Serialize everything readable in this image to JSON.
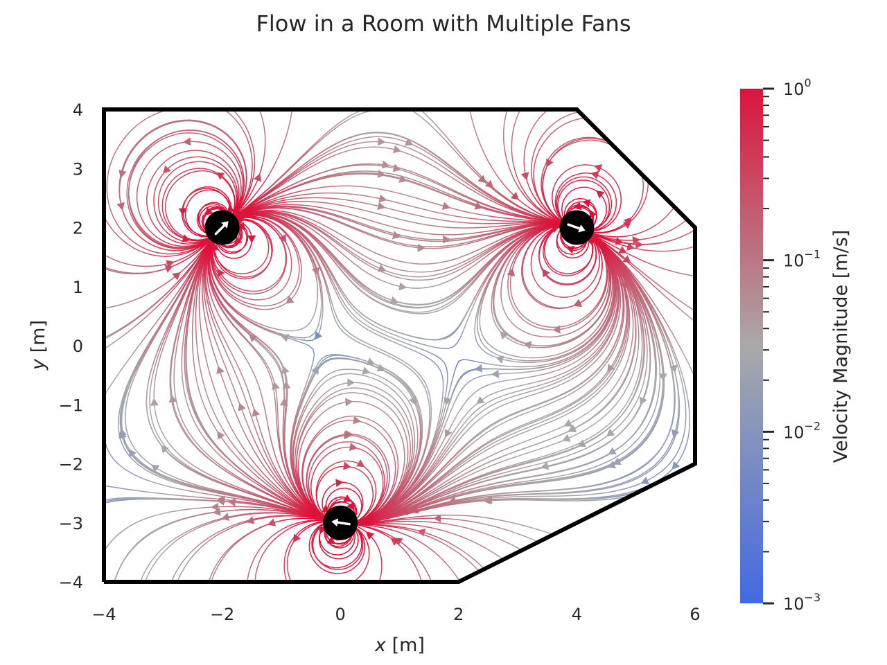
{
  "chart_data": {
    "type": "streamplot",
    "title": "Flow in a Room with Multiple Fans",
    "xlabel_var": "x",
    "xlabel_unit": "[m]",
    "ylabel_var": "y",
    "ylabel_unit": "[m]",
    "xlim": [
      -4,
      6
    ],
    "ylim": [
      -4,
      4
    ],
    "xticks": [
      -4,
      -2,
      0,
      2,
      4,
      6
    ],
    "yticks": [
      -4,
      -3,
      -2,
      -1,
      0,
      1,
      2,
      3,
      4
    ],
    "xtick_labels": [
      "−4",
      "−2",
      "0",
      "2",
      "4",
      "6"
    ],
    "ytick_labels": [
      "−4",
      "−3",
      "−2",
      "−1",
      "0",
      "1",
      "2",
      "3",
      "4"
    ],
    "grid": false,
    "room_boundary": [
      [
        -4,
        -4
      ],
      [
        2,
        -4
      ],
      [
        6,
        -2
      ],
      [
        6,
        2
      ],
      [
        4,
        4
      ],
      [
        -4,
        4
      ],
      [
        -4,
        -4
      ]
    ],
    "fans": [
      {
        "x": -2,
        "y": 2,
        "direction": [
          1,
          1
        ]
      },
      {
        "x": 4,
        "y": 2,
        "direction": [
          1,
          -0.35
        ]
      },
      {
        "x": 0,
        "y": -3,
        "direction": [
          -1,
          0.15
        ]
      }
    ],
    "colorbar": {
      "label": "Velocity Magnitude [m/s]",
      "scale": "log",
      "min": 0.001,
      "max": 1,
      "tick_labels": [
        {
          "base": "10",
          "exp": "−3",
          "value": 0.001
        },
        {
          "base": "10",
          "exp": "−2",
          "value": 0.01
        },
        {
          "base": "10",
          "exp": "−1",
          "value": 0.1
        },
        {
          "base": "10",
          "exp": "0",
          "value": 1
        }
      ],
      "colors": {
        "low": "#4169e1",
        "mid": "#a9a9a9",
        "high": "#dc143c"
      }
    }
  }
}
